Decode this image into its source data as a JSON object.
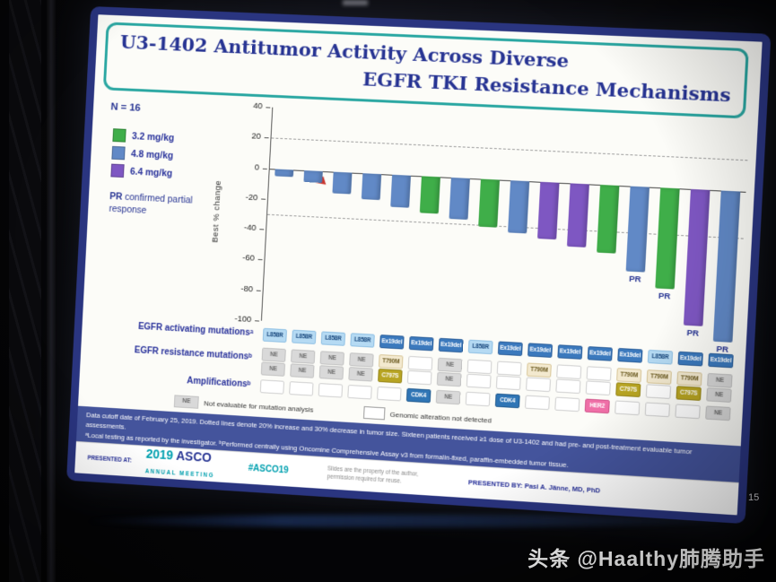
{
  "scene": {
    "watermark": "头条 @Haalthy肺腾助手",
    "page_number": "15"
  },
  "slide": {
    "title_line1": "U3-1402 Antitumor Activity Across Diverse",
    "title_line2": "EGFR TKI Resistance Mechanisms",
    "n_label": "N = 16",
    "legend": {
      "doses": [
        {
          "label": "3.2 mg/kg",
          "color": "#3fae49"
        },
        {
          "label": "4.8 mg/kg",
          "color": "#6189c6"
        },
        {
          "label": "6.4 mg/kg",
          "color": "#7e57c2"
        }
      ],
      "pr_abbr": "PR",
      "pr_definition": "confirmed partial response"
    }
  },
  "chart_data": {
    "type": "bar",
    "title": "U3-1402 Antitumor Activity Across Diverse EGFR TKI Resistance Mechanisms",
    "ylabel": "Best % change",
    "ylim": [
      -100,
      40
    ],
    "yticks": [
      40,
      20,
      0,
      -20,
      -40,
      -60,
      -80,
      -100
    ],
    "reference_lines": {
      "values": [
        20,
        -30
      ],
      "style": "dashed",
      "note": "Dotted lines denote 20% increase and 30% decrease in tumor size"
    },
    "n": 16,
    "legend_position": "left",
    "grid": false,
    "dose_colors": {
      "3.2 mg/kg": "#3fae49",
      "4.8 mg/kg": "#6189c6",
      "6.4 mg/kg": "#7e57c2"
    },
    "patients": [
      {
        "id": 1,
        "best_pct_change": -5,
        "dose": "4.8 mg/kg",
        "pr": false
      },
      {
        "id": 2,
        "best_pct_change": -8,
        "dose": "4.8 mg/kg",
        "pr": false
      },
      {
        "id": 3,
        "best_pct_change": -14,
        "dose": "4.8 mg/kg",
        "pr": false
      },
      {
        "id": 4,
        "best_pct_change": -17,
        "dose": "4.8 mg/kg",
        "pr": false
      },
      {
        "id": 5,
        "best_pct_change": -21,
        "dose": "4.8 mg/kg",
        "pr": false
      },
      {
        "id": 6,
        "best_pct_change": -24,
        "dose": "3.2 mg/kg",
        "pr": false
      },
      {
        "id": 7,
        "best_pct_change": -27,
        "dose": "4.8 mg/kg",
        "pr": false
      },
      {
        "id": 8,
        "best_pct_change": -31,
        "dose": "3.2 mg/kg",
        "pr": false
      },
      {
        "id": 9,
        "best_pct_change": -34,
        "dose": "4.8 mg/kg",
        "pr": false
      },
      {
        "id": 10,
        "best_pct_change": -37,
        "dose": "6.4 mg/kg",
        "pr": false
      },
      {
        "id": 11,
        "best_pct_change": -41,
        "dose": "6.4 mg/kg",
        "pr": false
      },
      {
        "id": 12,
        "best_pct_change": -44,
        "dose": "3.2 mg/kg",
        "pr": false
      },
      {
        "id": 13,
        "best_pct_change": -55,
        "dose": "4.8 mg/kg",
        "pr": true
      },
      {
        "id": 14,
        "best_pct_change": -65,
        "dose": "3.2 mg/kg",
        "pr": true
      },
      {
        "id": 15,
        "best_pct_change": -88,
        "dose": "6.4 mg/kg",
        "pr": true
      },
      {
        "id": 16,
        "best_pct_change": -97,
        "dose": "4.8 mg/kg",
        "pr": true
      }
    ]
  },
  "mutation_table": {
    "row_labels": [
      "EGFR activating mutationsᵃ",
      "EGFR resistance mutationsᵇ",
      "Amplificationsᵇ"
    ],
    "activating": [
      "L858R",
      "L858R",
      "L858R",
      "L858R",
      "Ex19del",
      "Ex19del",
      "Ex19del",
      "L858R",
      "Ex19del",
      "Ex19del",
      "Ex19del",
      "Ex19del",
      "Ex19del",
      "L858R",
      "Ex19del",
      "Ex19del"
    ],
    "resistance_1": [
      "NE",
      "NE",
      "NE",
      "NE",
      "T790M",
      "",
      "NE",
      "",
      "",
      "T790M",
      "",
      "",
      "T790M",
      "T790M",
      "T790M",
      "NE"
    ],
    "resistance_2": [
      "NE",
      "NE",
      "NE",
      "NE",
      "C797S",
      "",
      "NE",
      "",
      "",
      "",
      "",
      "",
      "C797S",
      "",
      "C797S",
      "NE"
    ],
    "amplifications": [
      "",
      "",
      "",
      "",
      "",
      "CDK4",
      "NE",
      "",
      "CDK4",
      "",
      "",
      "HER2",
      "",
      "",
      "",
      "NE"
    ],
    "legend": {
      "ne_chip": "NE",
      "ne_label": "Not evaluable for mutation analysis",
      "not_detected_label": "Genomic alteration not detected"
    }
  },
  "footnotes": {
    "line1": "Data cutoff date of February 25, 2019. Dotted lines denote 20% increase and 30% decrease in tumor size. Sixteen patients received ≥1 dose of U3-1402 and had pre- and post-treatment evaluable tumor assessments.",
    "line2": "ᵃLocal testing as reported by the investigator. ᵇPerformed centrally using Oncomine Comprehensive Assay v3 from formalin-fixed, paraffin-embedded tumor tissue."
  },
  "footer": {
    "presented_at_label": "PRESENTED AT:",
    "meeting_year": "2019",
    "meeting_name": "ASCO",
    "meeting_sub": "ANNUAL MEETING",
    "hashtag": "#ASCO19",
    "property_note": "Slides are the property of the author, permission required for reuse.",
    "presented_by": "PRESENTED BY: Pasi A. Jänne, MD, PhD",
    "accent_teal": "#00a0af",
    "navy": "#273493"
  }
}
